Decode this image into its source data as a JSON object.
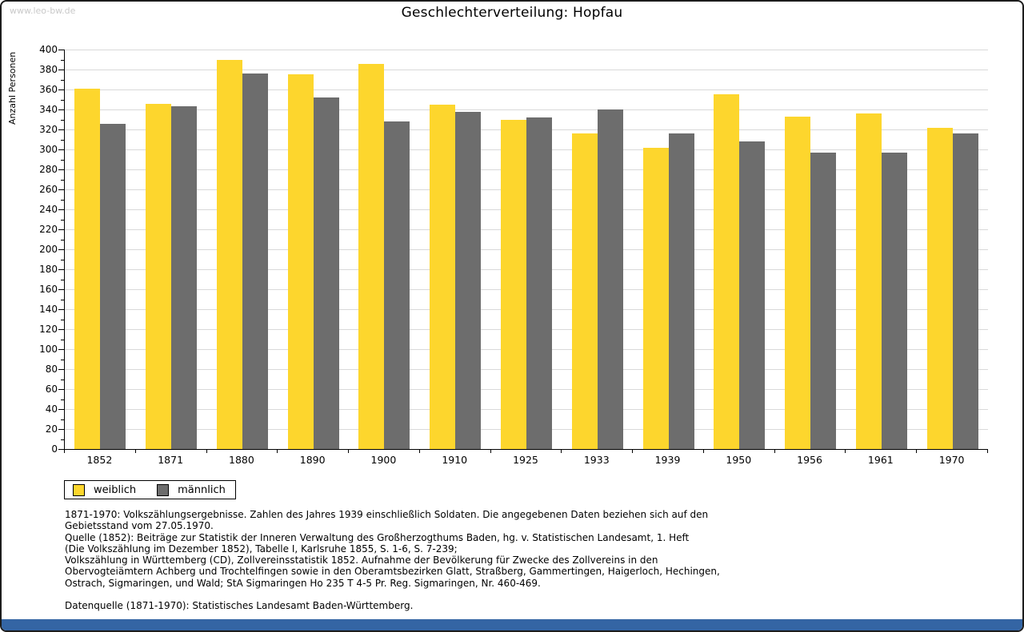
{
  "window": {
    "watermark": "www.leo-bw.de",
    "title": "Geschlechterverteilung: Hopfau"
  },
  "chart_data": {
    "type": "bar",
    "title": "Geschlechterverteilung: Hopfau",
    "xlabel": "",
    "ylabel": "Anzahl Personen",
    "ylim": [
      0,
      400
    ],
    "ytick_step": 20,
    "yminor_step": 10,
    "grid": true,
    "legend_position": "bottom-left",
    "categories": [
      "1852",
      "1871",
      "1880",
      "1890",
      "1900",
      "1910",
      "1925",
      "1933",
      "1939",
      "1950",
      "1956",
      "1961",
      "1970"
    ],
    "series": [
      {
        "name": "weiblich",
        "color": "#fdd62d",
        "values": [
          361,
          346,
          390,
          375,
          386,
          345,
          330,
          316,
          302,
          355,
          333,
          336,
          322
        ]
      },
      {
        "name": "männlich",
        "color": "#6d6d6d",
        "values": [
          326,
          343,
          376,
          352,
          328,
          338,
          332,
          340,
          316,
          308,
          297,
          297,
          316
        ]
      }
    ]
  },
  "footnotes": {
    "lines": [
      "1871-1970: Volkszählungsergebnisse. Zahlen des Jahres 1939 einschließlich Soldaten. Die angegebenen Daten beziehen sich auf den",
      "Gebietsstand vom 27.05.1970.",
      "Quelle (1852): Beiträge zur Statistik der Inneren Verwaltung des Großherzogthums Baden, hg. v. Statistischen Landesamt, 1. Heft",
      "(Die Volkszählung im Dezember 1852), Tabelle I, Karlsruhe 1855, S. 1-6, S. 7-239;",
      "Volkszählung in Württemberg (CD), Zollvereinsstatistik 1852. Aufnahme der Bevölkerung für Zwecke des Zollvereins in den",
      "Obervogteiämtern Achberg und Trochtelfingen sowie in den Oberamtsbezirken Glatt, Straßberg, Gammertingen, Haigerloch, Hechingen,",
      "Ostrach, Sigmaringen, und Wald; StA Sigmaringen Ho 235 T 4-5 Pr. Reg. Sigmaringen, Nr. 460-469.",
      "",
      "Datenquelle (1871-1970): Statistisches Landesamt Baden-Württemberg."
    ]
  },
  "colors": {
    "accent_bottom_bar": "#3465a4",
    "gridline": "#d9d9d9",
    "watermark_text": "#c9c9c9",
    "axis": "#000000"
  }
}
